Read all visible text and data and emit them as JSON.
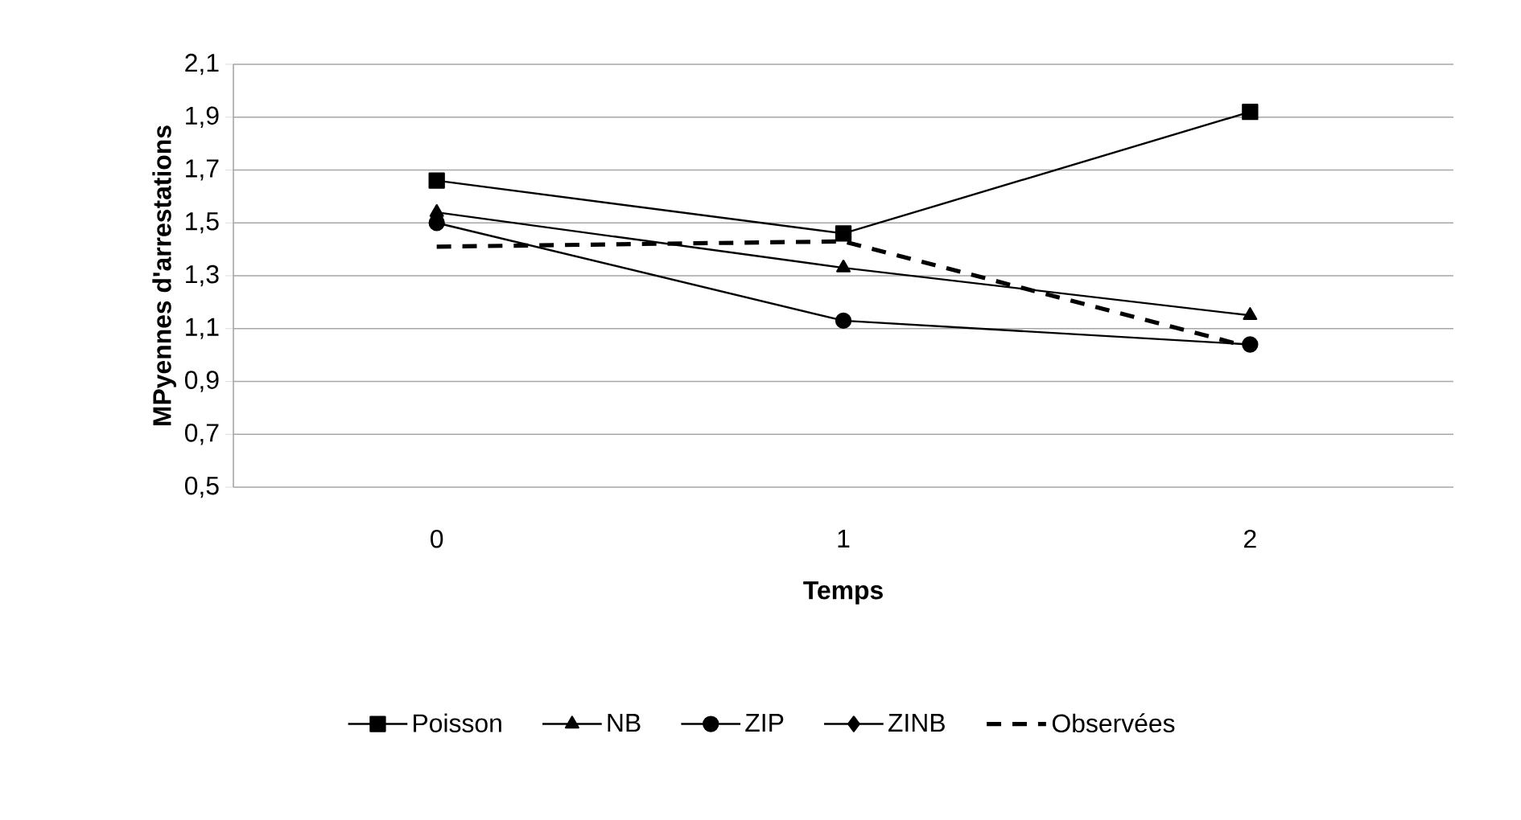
{
  "chart_data": {
    "type": "line",
    "xlabel": "Temps",
    "ylabel": "MPyennes d'arrestations",
    "categories": [
      "0",
      "1",
      "2"
    ],
    "series": [
      {
        "name": "Poisson",
        "color": "#000000",
        "marker": "square",
        "line_style": "solid",
        "values": [
          1.66,
          1.46,
          1.92
        ]
      },
      {
        "name": "NB",
        "color": "#000000",
        "marker": "triangle",
        "line_style": "solid",
        "values": [
          1.54,
          1.33,
          1.15
        ]
      },
      {
        "name": "ZIP",
        "color": "#000000",
        "marker": "circle",
        "line_style": "solid",
        "values": [
          1.5,
          1.13,
          1.04
        ]
      },
      {
        "name": "ZINB",
        "color": "#000000",
        "marker": "diamond",
        "line_style": "solid",
        "values": [
          1.52,
          null,
          null
        ]
      },
      {
        "name": "Observées",
        "color": "#000000",
        "marker": "none",
        "line_style": "dashed",
        "values": [
          1.41,
          1.43,
          1.03
        ]
      }
    ],
    "ylim": [
      0.5,
      2.1
    ],
    "yticks": [
      {
        "value": 0.5,
        "label": "0,5"
      },
      {
        "value": 0.7,
        "label": "0,7"
      },
      {
        "value": 0.9,
        "label": "0,9"
      },
      {
        "value": 1.1,
        "label": "1,1"
      },
      {
        "value": 1.3,
        "label": "1,3"
      },
      {
        "value": 1.5,
        "label": "1,5"
      },
      {
        "value": 1.7,
        "label": "1,7"
      },
      {
        "value": 1.9,
        "label": "1,9"
      },
      {
        "value": 2.1,
        "label": "2,1"
      }
    ],
    "grid": "y",
    "legend": "bottom"
  }
}
